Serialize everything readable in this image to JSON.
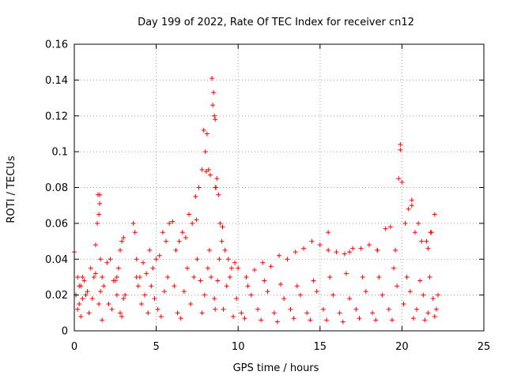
{
  "chart_data": {
    "type": "scatter",
    "title": "Day 199 of 2022, Rate Of TEC Index for receiver cn12",
    "xlabel": "GPS time / hours",
    "ylabel": "ROTI / TECUs",
    "xlim": [
      0,
      25
    ],
    "ylim": [
      0,
      0.16
    ],
    "xticks": [
      0,
      5,
      10,
      15,
      20,
      25
    ],
    "xtick_labels": [
      "0",
      "5",
      "10",
      "15",
      "20",
      "25"
    ],
    "yticks": [
      0,
      0.02,
      0.04,
      0.06,
      0.08,
      0.1,
      0.12,
      0.14,
      0.16
    ],
    "ytick_labels": [
      "0",
      "0.02",
      "0.04",
      "0.06",
      "0.08",
      "0.1",
      "0.12",
      "0.14",
      "0.16"
    ],
    "grid": true,
    "marker": "+",
    "color": "#ff0000",
    "series": [
      {
        "name": "ROTI",
        "x": [
          0.0,
          0.1,
          0.2,
          0.3,
          0.4,
          0.5,
          0.6,
          0.8,
          1.0,
          1.2,
          1.3,
          1.4,
          1.45,
          1.5,
          1.55,
          1.6,
          1.7,
          1.8,
          2.0,
          2.2,
          2.4,
          2.6,
          2.7,
          2.8,
          2.9,
          3.0,
          3.1,
          3.6,
          3.7,
          3.8,
          4.0,
          4.2,
          4.4,
          4.6,
          4.8,
          5.0,
          5.2,
          5.4,
          5.6,
          5.8,
          6.0,
          6.2,
          6.4,
          6.6,
          6.8,
          7.0,
          7.2,
          7.4,
          7.6,
          7.8,
          7.9,
          8.0,
          8.1,
          8.2,
          8.3,
          8.4,
          8.45,
          8.5,
          8.55,
          8.6,
          8.65,
          8.7,
          8.8,
          8.9,
          9.0,
          9.2,
          9.4,
          9.6,
          9.8,
          10.0,
          10.5,
          11.0,
          11.5,
          12.0,
          12.5,
          13.0,
          13.5,
          14.0,
          14.5,
          15.0,
          15.5,
          16.0,
          16.5,
          17.0,
          17.5,
          18.0,
          18.5,
          19.0,
          19.3,
          19.6,
          19.8,
          19.9,
          20.0,
          20.2,
          20.4,
          20.6,
          20.8,
          21.0,
          21.2,
          21.5,
          21.8,
          22.0,
          22.2,
          0.3,
          0.7,
          1.1,
          1.6,
          2.1,
          2.6,
          3.0,
          3.9,
          4.3,
          4.9,
          5.5,
          6.1,
          6.7,
          7.3,
          7.7,
          8.15,
          8.35,
          8.75,
          9.3,
          9.9,
          10.8,
          11.8,
          12.8,
          13.8,
          14.8,
          15.8,
          16.8,
          17.8,
          18.8,
          19.7,
          20.5,
          21.3,
          21.9,
          0.2,
          0.9,
          1.5,
          2.3,
          2.8,
          4.1,
          5.1,
          6.3,
          7.1,
          7.95,
          8.55,
          9.1,
          10.2,
          11.2,
          12.2,
          13.2,
          14.2,
          15.2,
          16.2,
          17.2,
          18.2,
          19.2,
          20.1,
          20.9,
          21.6,
          22.1,
          0.5,
          1.3,
          2.5,
          3.8,
          4.7,
          5.7,
          6.9,
          7.5,
          8.25,
          8.85,
          9.5,
          10.6,
          11.6,
          12.6,
          13.6,
          14.6,
          15.6,
          16.6,
          17.6,
          18.6,
          19.5,
          20.3,
          21.1,
          21.7,
          0.4,
          1.7,
          2.9,
          4.5,
          5.3,
          6.5,
          7.8,
          8.6,
          9.7,
          10.4,
          11.4,
          12.4,
          13.4,
          14.4,
          15.4,
          16.4,
          17.4,
          18.4,
          19.4,
          20.7,
          21.4,
          22.0,
          1.55,
          7.45,
          8.05,
          8.6,
          9.05,
          15.5,
          16.8,
          18.5,
          19.9,
          20.6,
          21.6,
          21.75
        ],
        "y": [
          0.044,
          0.02,
          0.03,
          0.015,
          0.025,
          0.018,
          0.028,
          0.022,
          0.035,
          0.03,
          0.048,
          0.06,
          0.076,
          0.065,
          0.071,
          0.04,
          0.03,
          0.025,
          0.038,
          0.04,
          0.028,
          0.03,
          0.035,
          0.045,
          0.05,
          0.052,
          0.02,
          0.06,
          0.055,
          0.04,
          0.03,
          0.038,
          0.032,
          0.045,
          0.035,
          0.04,
          0.042,
          0.055,
          0.05,
          0.06,
          0.061,
          0.045,
          0.05,
          0.055,
          0.052,
          0.065,
          0.06,
          0.075,
          0.08,
          0.09,
          0.112,
          0.1,
          0.11,
          0.09,
          0.087,
          0.141,
          0.126,
          0.133,
          0.12,
          0.118,
          0.08,
          0.085,
          0.076,
          0.06,
          0.05,
          0.045,
          0.04,
          0.035,
          0.038,
          0.035,
          0.03,
          0.034,
          0.038,
          0.036,
          0.042,
          0.04,
          0.044,
          0.046,
          0.05,
          0.048,
          0.045,
          0.044,
          0.043,
          0.046,
          0.046,
          0.048,
          0.045,
          0.057,
          0.058,
          0.045,
          0.085,
          0.104,
          0.083,
          0.06,
          0.068,
          0.073,
          0.055,
          0.06,
          0.05,
          0.05,
          0.055,
          0.065,
          0.02,
          0.025,
          0.02,
          0.018,
          0.022,
          0.015,
          0.02,
          0.018,
          0.025,
          0.02,
          0.018,
          0.022,
          0.025,
          0.022,
          0.03,
          0.028,
          0.035,
          0.03,
          0.028,
          0.025,
          0.018,
          0.02,
          0.022,
          0.018,
          0.02,
          0.022,
          0.02,
          0.018,
          0.022,
          0.02,
          0.025,
          0.022,
          0.02,
          0.018,
          0.012,
          0.01,
          0.015,
          0.012,
          0.01,
          0.015,
          0.012,
          0.01,
          0.015,
          0.02,
          0.018,
          0.012,
          0.01,
          0.012,
          0.01,
          0.012,
          0.01,
          0.012,
          0.01,
          0.012,
          0.01,
          0.012,
          0.015,
          0.012,
          0.01,
          0.012,
          0.03,
          0.032,
          0.028,
          0.03,
          0.025,
          0.03,
          0.035,
          0.04,
          0.045,
          0.04,
          0.03,
          0.025,
          0.028,
          0.026,
          0.025,
          0.028,
          0.03,
          0.032,
          0.03,
          0.03,
          0.035,
          0.03,
          0.028,
          0.03,
          0.008,
          0.006,
          0.008,
          0.01,
          0.008,
          0.007,
          0.01,
          0.012,
          0.008,
          0.007,
          0.006,
          0.005,
          0.007,
          0.006,
          0.006,
          0.005,
          0.007,
          0.006,
          0.006,
          0.007,
          0.006,
          0.008,
          0.076,
          0.062,
          0.089,
          0.08,
          0.058,
          0.055,
          0.044,
          0.045,
          0.101,
          0.07,
          0.046,
          0.055
        ]
      }
    ]
  }
}
